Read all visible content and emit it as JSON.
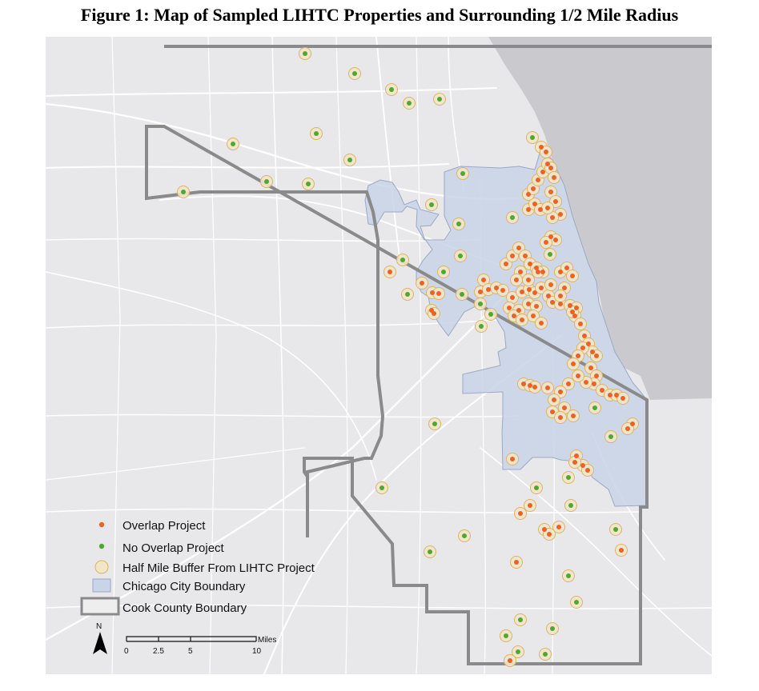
{
  "title": "Figure 1:  Map of Sampled LIHTC Properties and Surrounding 1/2 Mile Radius",
  "colors": {
    "land": "#e8e8ea",
    "lake": "#c9c9ce",
    "roads": "#ffffff",
    "city_fill": "#c9d4e6",
    "city_stroke": "#9aa9c4",
    "county": "#8a8a8a",
    "overlap": "#e8622a",
    "no_overlap": "#4ea832",
    "buffer_fill": "#f3e6c7",
    "buffer_stroke": "#d8b46a"
  },
  "legend": {
    "overlap": "Overlap Project",
    "no_overlap": "No Overlap Project",
    "buffer": "Half Mile Buffer From LIHTC Project",
    "city": "Chicago City Boundary",
    "county": "Cook County Boundary"
  },
  "north_label": "N",
  "scale": {
    "unit": "Miles",
    "ticks": [
      "0",
      "2.5",
      "5",
      "10"
    ]
  },
  "points": {
    "no_overlap": [
      [
        381,
        67
      ],
      [
        443,
        92
      ],
      [
        489,
        112
      ],
      [
        511,
        129
      ],
      [
        549,
        124
      ],
      [
        395,
        167
      ],
      [
        291,
        180
      ],
      [
        437,
        200
      ],
      [
        333,
        227
      ],
      [
        385,
        230
      ],
      [
        229,
        240
      ],
      [
        578,
        217
      ],
      [
        539,
        256
      ],
      [
        573,
        280
      ],
      [
        575,
        320
      ],
      [
        503,
        325
      ],
      [
        554,
        340
      ],
      [
        509,
        368
      ],
      [
        577,
        368
      ],
      [
        613,
        393
      ],
      [
        601,
        408
      ],
      [
        543,
        530
      ],
      [
        477,
        610
      ],
      [
        580,
        670
      ],
      [
        537,
        690
      ],
      [
        763,
        546
      ],
      [
        743,
        510
      ],
      [
        710,
        597
      ],
      [
        670,
        610
      ],
      [
        713,
        632
      ],
      [
        769,
        662
      ],
      [
        710,
        720
      ],
      [
        720,
        753
      ],
      [
        650,
        775
      ],
      [
        690,
        786
      ],
      [
        632,
        795
      ],
      [
        647,
        815
      ],
      [
        681,
        818
      ],
      [
        665,
        172
      ],
      [
        687,
        318
      ],
      [
        640,
        272
      ],
      [
        600,
        380
      ]
    ],
    "overlap": [
      [
        487,
        340
      ],
      [
        527,
        354
      ],
      [
        540,
        366
      ],
      [
        548,
        367
      ],
      [
        539,
        388
      ],
      [
        542,
        392
      ],
      [
        604,
        350
      ],
      [
        600,
        365
      ],
      [
        610,
        362
      ],
      [
        620,
        360
      ],
      [
        628,
        363
      ],
      [
        640,
        372
      ],
      [
        652,
        365
      ],
      [
        661,
        362
      ],
      [
        668,
        366
      ],
      [
        676,
        360
      ],
      [
        685,
        370
      ],
      [
        690,
        378
      ],
      [
        700,
        380
      ],
      [
        712,
        382
      ],
      [
        720,
        385
      ],
      [
        636,
        385
      ],
      [
        648,
        388
      ],
      [
        660,
        380
      ],
      [
        670,
        383
      ],
      [
        632,
        330
      ],
      [
        640,
        320
      ],
      [
        648,
        310
      ],
      [
        656,
        320
      ],
      [
        662,
        330
      ],
      [
        670,
        335
      ],
      [
        678,
        340
      ],
      [
        650,
        340
      ],
      [
        645,
        350
      ],
      [
        660,
        350
      ],
      [
        700,
        340
      ],
      [
        708,
        335
      ],
      [
        715,
        345
      ],
      [
        705,
        360
      ],
      [
        700,
        370
      ],
      [
        718,
        395
      ],
      [
        725,
        405
      ],
      [
        715,
        390
      ],
      [
        730,
        420
      ],
      [
        735,
        430
      ],
      [
        740,
        440
      ],
      [
        745,
        445
      ],
      [
        728,
        435
      ],
      [
        722,
        445
      ],
      [
        716,
        455
      ],
      [
        738,
        460
      ],
      [
        745,
        470
      ],
      [
        742,
        480
      ],
      [
        752,
        488
      ],
      [
        762,
        494
      ],
      [
        770,
        494
      ],
      [
        778,
        498
      ],
      [
        732,
        478
      ],
      [
        722,
        470
      ],
      [
        710,
        480
      ],
      [
        700,
        490
      ],
      [
        692,
        500
      ],
      [
        690,
        515
      ],
      [
        705,
        510
      ],
      [
        716,
        520
      ],
      [
        700,
        522
      ],
      [
        684,
        485
      ],
      [
        654,
        480
      ],
      [
        662,
        482
      ],
      [
        668,
        484
      ],
      [
        720,
        570
      ],
      [
        728,
        582
      ],
      [
        734,
        588
      ],
      [
        718,
        578
      ],
      [
        660,
        262
      ],
      [
        668,
        255
      ],
      [
        675,
        262
      ],
      [
        660,
        243
      ],
      [
        666,
        236
      ],
      [
        672,
        225
      ],
      [
        678,
        215
      ],
      [
        684,
        205
      ],
      [
        688,
        210
      ],
      [
        692,
        222
      ],
      [
        688,
        240
      ],
      [
        694,
        252
      ],
      [
        700,
        268
      ],
      [
        690,
        272
      ],
      [
        684,
        260
      ],
      [
        676,
        184
      ],
      [
        682,
        190
      ],
      [
        688,
        296
      ],
      [
        694,
        300
      ],
      [
        682,
        303
      ],
      [
        640,
        574
      ],
      [
        662,
        632
      ],
      [
        650,
        642
      ],
      [
        680,
        662
      ],
      [
        698,
        659
      ],
      [
        686,
        668
      ],
      [
        776,
        688
      ],
      [
        645,
        703
      ],
      [
        637,
        826
      ],
      [
        790,
        530
      ],
      [
        784,
        536
      ],
      [
        672,
        340
      ],
      [
        688,
        356
      ],
      [
        642,
        395
      ],
      [
        652,
        400
      ],
      [
        666,
        395
      ],
      [
        676,
        404
      ]
    ]
  }
}
